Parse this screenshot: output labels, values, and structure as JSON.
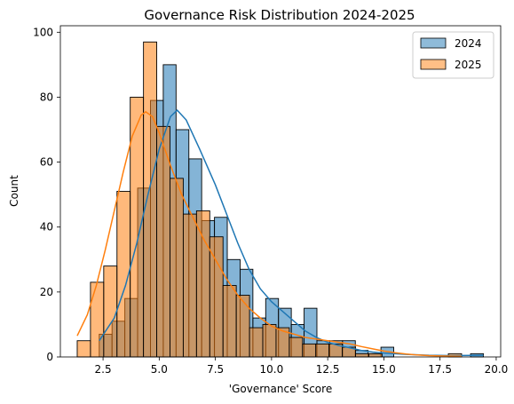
{
  "chart_data": {
    "type": "histogram",
    "title": "Governance Risk Distribution 2024-2025",
    "xlabel": "'Governance' Score",
    "ylabel": "Count",
    "xlim": [
      0.6,
      20.2
    ],
    "ylim": [
      0,
      102
    ],
    "xticks": [
      2.5,
      5.0,
      7.5,
      10.0,
      12.5,
      15.0,
      17.5,
      20.0
    ],
    "yticks": [
      0,
      20,
      40,
      60,
      80,
      100
    ],
    "legend_position": "upper right",
    "series": [
      {
        "name": "2024",
        "color": "#1f77b4",
        "bins": [
          [
            2.33,
            2.9,
            7
          ],
          [
            2.9,
            3.47,
            11
          ],
          [
            3.47,
            4.04,
            18
          ],
          [
            4.04,
            4.61,
            52
          ],
          [
            4.61,
            5.18,
            79
          ],
          [
            5.18,
            5.75,
            90
          ],
          [
            5.75,
            6.32,
            70
          ],
          [
            6.32,
            6.89,
            61
          ],
          [
            6.89,
            7.46,
            42
          ],
          [
            7.46,
            8.03,
            43
          ],
          [
            8.03,
            8.6,
            30
          ],
          [
            8.6,
            9.17,
            27
          ],
          [
            9.17,
            9.74,
            12
          ],
          [
            9.74,
            10.31,
            18
          ],
          [
            10.31,
            10.88,
            15
          ],
          [
            10.88,
            11.45,
            10
          ],
          [
            11.45,
            12.02,
            15
          ],
          [
            12.02,
            12.59,
            5
          ],
          [
            12.59,
            13.16,
            5
          ],
          [
            13.16,
            13.73,
            5
          ],
          [
            13.73,
            14.3,
            2
          ],
          [
            14.3,
            14.87,
            1
          ],
          [
            14.87,
            15.44,
            3
          ],
          [
            15.44,
            16.01,
            0
          ],
          [
            16.01,
            16.58,
            0
          ],
          [
            16.58,
            17.15,
            0
          ],
          [
            17.15,
            17.72,
            0
          ],
          [
            17.72,
            18.29,
            0
          ],
          [
            18.29,
            18.86,
            0
          ],
          [
            18.86,
            19.43,
            1
          ]
        ],
        "kde": [
          [
            2.33,
            5
          ],
          [
            3.0,
            12
          ],
          [
            3.5,
            22
          ],
          [
            4.0,
            35
          ],
          [
            4.5,
            50
          ],
          [
            5.0,
            64
          ],
          [
            5.5,
            74
          ],
          [
            5.8,
            76
          ],
          [
            6.2,
            73
          ],
          [
            6.8,
            64
          ],
          [
            7.5,
            53
          ],
          [
            8.0,
            44
          ],
          [
            8.5,
            35
          ],
          [
            9.0,
            27
          ],
          [
            9.5,
            21
          ],
          [
            10.0,
            17
          ],
          [
            10.5,
            14
          ],
          [
            11.0,
            11
          ],
          [
            11.5,
            8
          ],
          [
            12.0,
            6
          ],
          [
            12.5,
            4.5
          ],
          [
            13.0,
            3.5
          ],
          [
            13.5,
            2.8
          ],
          [
            14.0,
            2
          ],
          [
            14.5,
            1.5
          ],
          [
            15.0,
            1.2
          ],
          [
            16.0,
            0.8
          ],
          [
            17.0,
            0.5
          ],
          [
            18.0,
            0.4
          ],
          [
            19.43,
            0.5
          ]
        ]
      },
      {
        "name": "2025",
        "color": "#ff7f0e",
        "bins": [
          [
            1.35,
            1.94,
            5
          ],
          [
            1.94,
            2.53,
            23
          ],
          [
            2.53,
            3.12,
            28
          ],
          [
            3.12,
            3.71,
            51
          ],
          [
            3.71,
            4.3,
            80
          ],
          [
            4.3,
            4.89,
            97
          ],
          [
            4.89,
            5.48,
            71
          ],
          [
            5.48,
            6.07,
            55
          ],
          [
            6.07,
            6.66,
            44
          ],
          [
            6.66,
            7.25,
            45
          ],
          [
            7.25,
            7.84,
            37
          ],
          [
            7.84,
            8.43,
            22
          ],
          [
            8.43,
            9.02,
            19
          ],
          [
            9.02,
            9.61,
            9
          ],
          [
            9.61,
            10.2,
            10
          ],
          [
            10.2,
            10.79,
            9
          ],
          [
            10.79,
            11.38,
            6
          ],
          [
            11.38,
            11.97,
            4
          ],
          [
            11.97,
            12.56,
            4
          ],
          [
            12.56,
            13.15,
            4
          ],
          [
            13.15,
            13.74,
            3
          ],
          [
            13.74,
            14.33,
            1
          ],
          [
            14.33,
            14.92,
            1
          ],
          [
            14.92,
            15.51,
            0
          ],
          [
            15.51,
            16.1,
            0
          ],
          [
            16.1,
            16.69,
            0
          ],
          [
            16.69,
            17.28,
            0
          ],
          [
            17.28,
            17.87,
            0
          ],
          [
            17.87,
            18.46,
            1
          ]
        ],
        "kde": [
          [
            1.35,
            6.5
          ],
          [
            1.8,
            13
          ],
          [
            2.2,
            22
          ],
          [
            2.6,
            33
          ],
          [
            3.0,
            45
          ],
          [
            3.4,
            57
          ],
          [
            3.8,
            68
          ],
          [
            4.2,
            74.5
          ],
          [
            4.4,
            75.5
          ],
          [
            4.7,
            74
          ],
          [
            5.0,
            69
          ],
          [
            5.5,
            59
          ],
          [
            6.0,
            50
          ],
          [
            6.5,
            43
          ],
          [
            7.0,
            36
          ],
          [
            7.5,
            30
          ],
          [
            8.0,
            24
          ],
          [
            8.5,
            19
          ],
          [
            9.0,
            15
          ],
          [
            9.5,
            12
          ],
          [
            10.0,
            9.5
          ],
          [
            10.5,
            8
          ],
          [
            11.0,
            7
          ],
          [
            11.5,
            6
          ],
          [
            12.0,
            5.5
          ],
          [
            12.5,
            5
          ],
          [
            13.0,
            4.5
          ],
          [
            13.5,
            4
          ],
          [
            14.0,
            3.2
          ],
          [
            14.5,
            2.5
          ],
          [
            15.0,
            1.8
          ],
          [
            15.5,
            1.3
          ],
          [
            16.0,
            0.9
          ],
          [
            16.5,
            0.6
          ],
          [
            17.0,
            0.4
          ],
          [
            17.5,
            0.3
          ],
          [
            18.46,
            0.2
          ]
        ]
      }
    ]
  }
}
